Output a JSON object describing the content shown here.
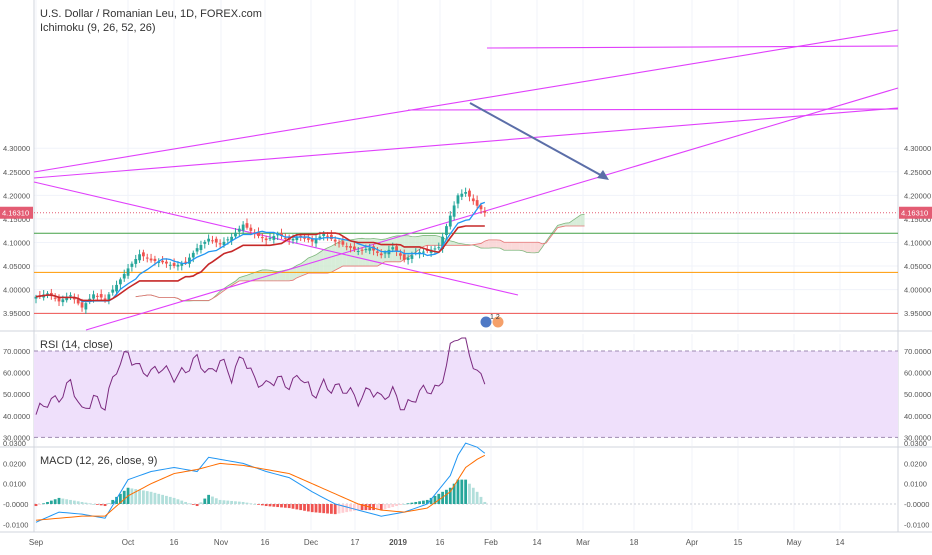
{
  "header": {
    "title": "U.S. Dollar / Romanian Leu, 1D, FOREX.com",
    "indicator": "Ichimoku (9, 26, 52, 26)"
  },
  "price_axis": {
    "labels": [
      "4.30000",
      "4.25000",
      "4.20000",
      "4.15000",
      "4.10000",
      "4.05000",
      "4.00000",
      "3.95000"
    ],
    "current_label": "4.16310",
    "current_color": "#e35c73"
  },
  "rsi_pane": {
    "label": "RSI (14, close)",
    "axis_labels": [
      "70.0000",
      "60.0000",
      "50.0000",
      "40.0000",
      "30.0000"
    ]
  },
  "macd_pane": {
    "label": "MACD (12, 26, close, 9)",
    "axis_labels": [
      "0.0300",
      "0.0200",
      "0.0100",
      "-0.0000",
      "-0.0100"
    ]
  },
  "time_axis": {
    "labels": [
      "Sep",
      "Oct",
      "16",
      "Nov",
      "16",
      "Dec",
      "17",
      "2019",
      "16",
      "Feb",
      "14",
      "Mar",
      "18",
      "Apr",
      "15",
      "May",
      "14"
    ]
  },
  "events": {
    "badge_text": "1 2"
  },
  "colors": {
    "up": "#26a69a",
    "down": "#ef5350",
    "trendline": "#e040fb",
    "arrow": "#5b6ea8",
    "rsi_fill": "#efe0fb",
    "rsi_line": "#7b2a7f",
    "tenkan": "#2196f3",
    "kijun": "#c62828",
    "cloud_up": "#c8e6c9",
    "cloud_down": "#f8c9c9",
    "hline_orange": "#ff9800",
    "hline_red": "#ef5350",
    "hline_green": "#43a047"
  },
  "chart_data": {
    "type": "candlestick",
    "series": [
      {
        "name": "U.S. Dollar / Romanian Leu",
        "price_path": [
          [
            0,
            3.985
          ],
          [
            3,
            3.992
          ],
          [
            6,
            3.975
          ],
          [
            9,
            3.988
          ],
          [
            12,
            3.962
          ],
          [
            15,
            3.99
          ],
          [
            18,
            3.98
          ],
          [
            21,
            4.01
          ],
          [
            24,
            4.045
          ],
          [
            27,
            4.075
          ],
          [
            30,
            4.062
          ],
          [
            33,
            4.058
          ],
          [
            36,
            4.05
          ],
          [
            39,
            4.058
          ],
          [
            42,
            4.088
          ],
          [
            45,
            4.108
          ],
          [
            48,
            4.096
          ],
          [
            51,
            4.112
          ],
          [
            54,
            4.138
          ],
          [
            57,
            4.118
          ],
          [
            60,
            4.105
          ],
          [
            63,
            4.118
          ],
          [
            66,
            4.105
          ],
          [
            69,
            4.113
          ],
          [
            72,
            4.102
          ],
          [
            75,
            4.118
          ],
          [
            78,
            4.102
          ],
          [
            81,
            4.092
          ],
          [
            84,
            4.082
          ],
          [
            87,
            4.088
          ],
          [
            90,
            4.073
          ],
          [
            93,
            4.09
          ],
          [
            96,
            4.063
          ],
          [
            99,
            4.078
          ],
          [
            102,
            4.082
          ],
          [
            105,
            4.09
          ],
          [
            108,
            4.157
          ],
          [
            110,
            4.2
          ],
          [
            112,
            4.207
          ],
          [
            115,
            4.178
          ],
          [
            117,
            4.163
          ]
        ]
      }
    ],
    "rsi_path": [
      [
        0,
        39
      ],
      [
        3,
        46
      ],
      [
        6,
        50
      ],
      [
        9,
        55
      ],
      [
        12,
        40
      ],
      [
        15,
        50
      ],
      [
        18,
        45
      ],
      [
        21,
        60
      ],
      [
        24,
        70
      ],
      [
        27,
        63
      ],
      [
        30,
        58
      ],
      [
        33,
        62
      ],
      [
        36,
        60
      ],
      [
        39,
        60
      ],
      [
        42,
        65
      ],
      [
        45,
        61
      ],
      [
        48,
        66
      ],
      [
        51,
        56
      ],
      [
        54,
        69
      ],
      [
        57,
        58
      ],
      [
        60,
        52
      ],
      [
        63,
        57
      ],
      [
        66,
        56
      ],
      [
        69,
        58
      ],
      [
        72,
        48
      ],
      [
        75,
        56
      ],
      [
        78,
        53
      ],
      [
        81,
        50
      ],
      [
        84,
        48
      ],
      [
        87,
        54
      ],
      [
        90,
        46
      ],
      [
        93,
        51
      ],
      [
        96,
        45
      ],
      [
        99,
        48
      ],
      [
        102,
        51
      ],
      [
        105,
        54
      ],
      [
        108,
        71
      ],
      [
        110,
        76
      ],
      [
        112,
        73
      ],
      [
        115,
        61
      ],
      [
        117,
        58
      ]
    ],
    "macd_path": [
      [
        0,
        -0.009
      ],
      [
        6,
        -0.004
      ],
      [
        12,
        -0.005
      ],
      [
        18,
        -0.007
      ],
      [
        24,
        0.012
      ],
      [
        30,
        0.016
      ],
      [
        36,
        0.018
      ],
      [
        42,
        0.016
      ],
      [
        45,
        0.023
      ],
      [
        48,
        0.022
      ],
      [
        54,
        0.02
      ],
      [
        60,
        0.016
      ],
      [
        66,
        0.013
      ],
      [
        72,
        0.006
      ],
      [
        78,
        0.0
      ],
      [
        84,
        -0.003
      ],
      [
        90,
        -0.006
      ],
      [
        96,
        -0.004
      ],
      [
        102,
        0.0
      ],
      [
        108,
        0.014
      ],
      [
        110,
        0.024
      ],
      [
        112,
        0.03
      ],
      [
        115,
        0.028
      ],
      [
        117,
        0.025
      ]
    ],
    "signal_path": [
      [
        0,
        -0.008
      ],
      [
        6,
        -0.007
      ],
      [
        12,
        -0.006
      ],
      [
        18,
        -0.006
      ],
      [
        24,
        0.004
      ],
      [
        30,
        0.01
      ],
      [
        36,
        0.015
      ],
      [
        42,
        0.017
      ],
      [
        48,
        0.02
      ],
      [
        54,
        0.019
      ],
      [
        60,
        0.017
      ],
      [
        66,
        0.015
      ],
      [
        72,
        0.01
      ],
      [
        78,
        0.005
      ],
      [
        84,
        0.0
      ],
      [
        90,
        -0.003
      ],
      [
        96,
        -0.004
      ],
      [
        102,
        -0.002
      ],
      [
        108,
        0.006
      ],
      [
        110,
        0.012
      ],
      [
        112,
        0.018
      ],
      [
        115,
        0.022
      ],
      [
        117,
        0.024
      ]
    ],
    "horizontal_levels": [
      {
        "value": 4.0366,
        "color": "#ff9800"
      },
      {
        "value": 3.9495,
        "color": "#ef5350"
      },
      {
        "value": 4.1195,
        "color": "#43a047"
      },
      {
        "value": 4.1631,
        "color": "#e35c73"
      }
    ],
    "ylim": [
      3.935,
      4.32
    ],
    "rsi_ylim": [
      26,
      76
    ],
    "macd_ylim": [
      -0.014,
      0.033
    ],
    "grid": true
  }
}
